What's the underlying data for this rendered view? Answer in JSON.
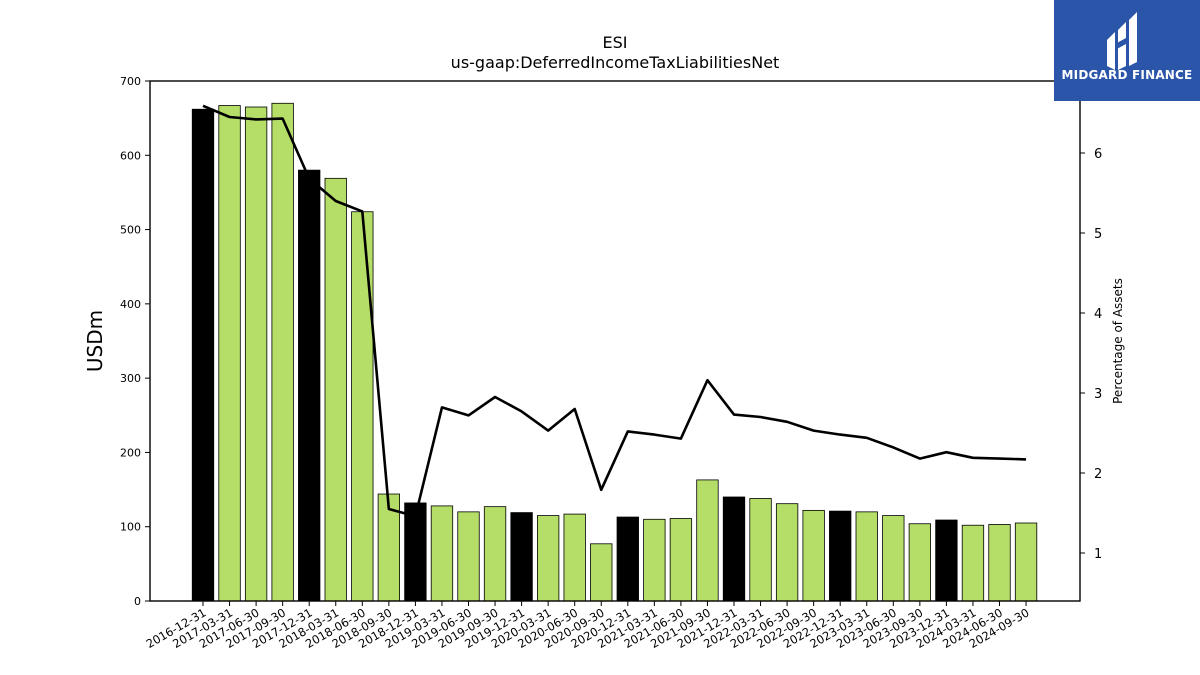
{
  "logo": {
    "name": "MIDGARD FINANCE",
    "color": "#2a55a9"
  },
  "chart_data": {
    "type": "bar",
    "title": "ESI",
    "subtitle": "us-gaap:DeferredIncomeTaxLiabilitiesNet",
    "ylabel": "USDm",
    "y2label": "Percentage of Assets",
    "ylim": [
      0,
      700
    ],
    "y2lim": [
      0.4,
      6.9
    ],
    "yticks": [
      0,
      100,
      200,
      300,
      400,
      500,
      600,
      700
    ],
    "y2ticks": [
      1,
      2,
      3,
      4,
      5,
      6
    ],
    "bar_colors": {
      "year_end": "#000000",
      "quarter": "#b5de68"
    },
    "line_color": "#000000",
    "grid": false,
    "categories": [
      "2016-12-31",
      "2017-03-31",
      "2017-06-30",
      "2017-09-30",
      "2017-12-31",
      "2018-03-31",
      "2018-06-30",
      "2018-09-30",
      "2018-12-31",
      "2019-03-31",
      "2019-06-30",
      "2019-09-30",
      "2019-12-31",
      "2020-03-31",
      "2020-06-30",
      "2020-09-30",
      "2020-12-31",
      "2021-03-31",
      "2021-06-30",
      "2021-09-30",
      "2021-12-31",
      "2022-03-31",
      "2022-06-30",
      "2022-09-30",
      "2022-12-31",
      "2023-03-31",
      "2023-06-30",
      "2023-09-30",
      "2023-12-31",
      "2024-03-31",
      "2024-06-30",
      "2024-09-30"
    ],
    "series": [
      {
        "type": "bar",
        "values": [
          662,
          667,
          665,
          670,
          580,
          569,
          524,
          144,
          132,
          128,
          120,
          127,
          119,
          115,
          117,
          77,
          113,
          110,
          111,
          163,
          140,
          138,
          131,
          122,
          121,
          120,
          115,
          104,
          109,
          102,
          103,
          105
        ]
      },
      {
        "type": "line",
        "values": [
          6.59,
          6.45,
          6.42,
          6.43,
          5.68,
          5.4,
          5.27,
          1.55,
          1.46,
          2.82,
          2.72,
          2.95,
          2.77,
          2.53,
          2.8,
          1.79,
          2.52,
          2.48,
          2.43,
          3.16,
          2.73,
          2.7,
          2.64,
          2.53,
          2.48,
          2.44,
          2.32,
          2.18,
          2.26,
          2.19,
          2.18,
          2.17
        ]
      }
    ]
  }
}
